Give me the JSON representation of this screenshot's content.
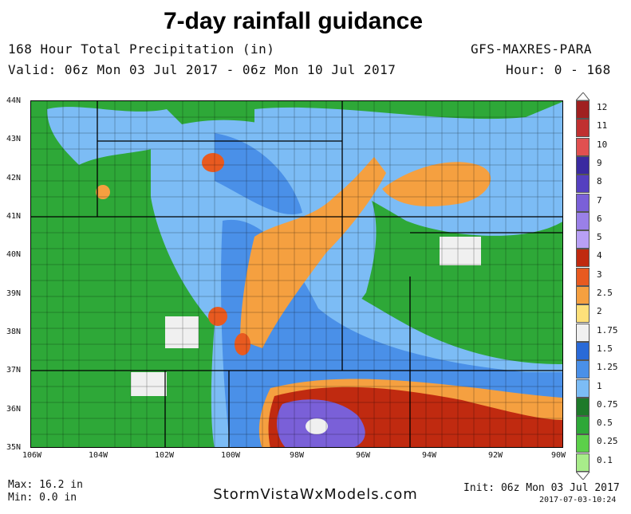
{
  "title": "7-day rainfall guidance",
  "header": {
    "product": "168 Hour Total Precipitation (in)",
    "model": "GFS-MAXRES-PARA",
    "valid": "Valid: 06z Mon 03 Jul 2017 - 06z Mon 10 Jul 2017",
    "hour": "Hour: 0 - 168"
  },
  "map": {
    "lat_labels": [
      "44N",
      "43N",
      "42N",
      "41N",
      "40N",
      "39N",
      "38N",
      "37N",
      "36N",
      "35N"
    ],
    "lon_labels": [
      "106W",
      "104W",
      "102W",
      "100W",
      "98W",
      "96W",
      "94W",
      "92W",
      "90W"
    ]
  },
  "colorbar": {
    "labels": [
      "12",
      "11",
      "10",
      "9",
      "8",
      "7",
      "6",
      "5",
      "4",
      "3",
      "2.5",
      "2",
      "1.75",
      "1.5",
      "1.25",
      "1",
      "0.75",
      "0.5",
      "0.25",
      "0.1"
    ],
    "colors": [
      "#a02020",
      "#c03030",
      "#e05050",
      "#3a2aa0",
      "#5540c0",
      "#7a60d8",
      "#9a80e8",
      "#b8a0f5",
      "#c02a10",
      "#e85a20",
      "#f5a040",
      "#fde07a",
      "#f0f0f0",
      "#2a6ad8",
      "#4a90e8",
      "#7cbcf5",
      "#1e7a2a",
      "#2ea838",
      "#5cd04a",
      "#a8ec8a"
    ]
  },
  "footer": {
    "max": "Max: 16.2 in",
    "min": "Min: 0.0 in",
    "site": "StormVistaWxModels.com",
    "init": "Init: 06z Mon 03 Jul 2017",
    "stamp": "2017-07-03-10:24"
  }
}
